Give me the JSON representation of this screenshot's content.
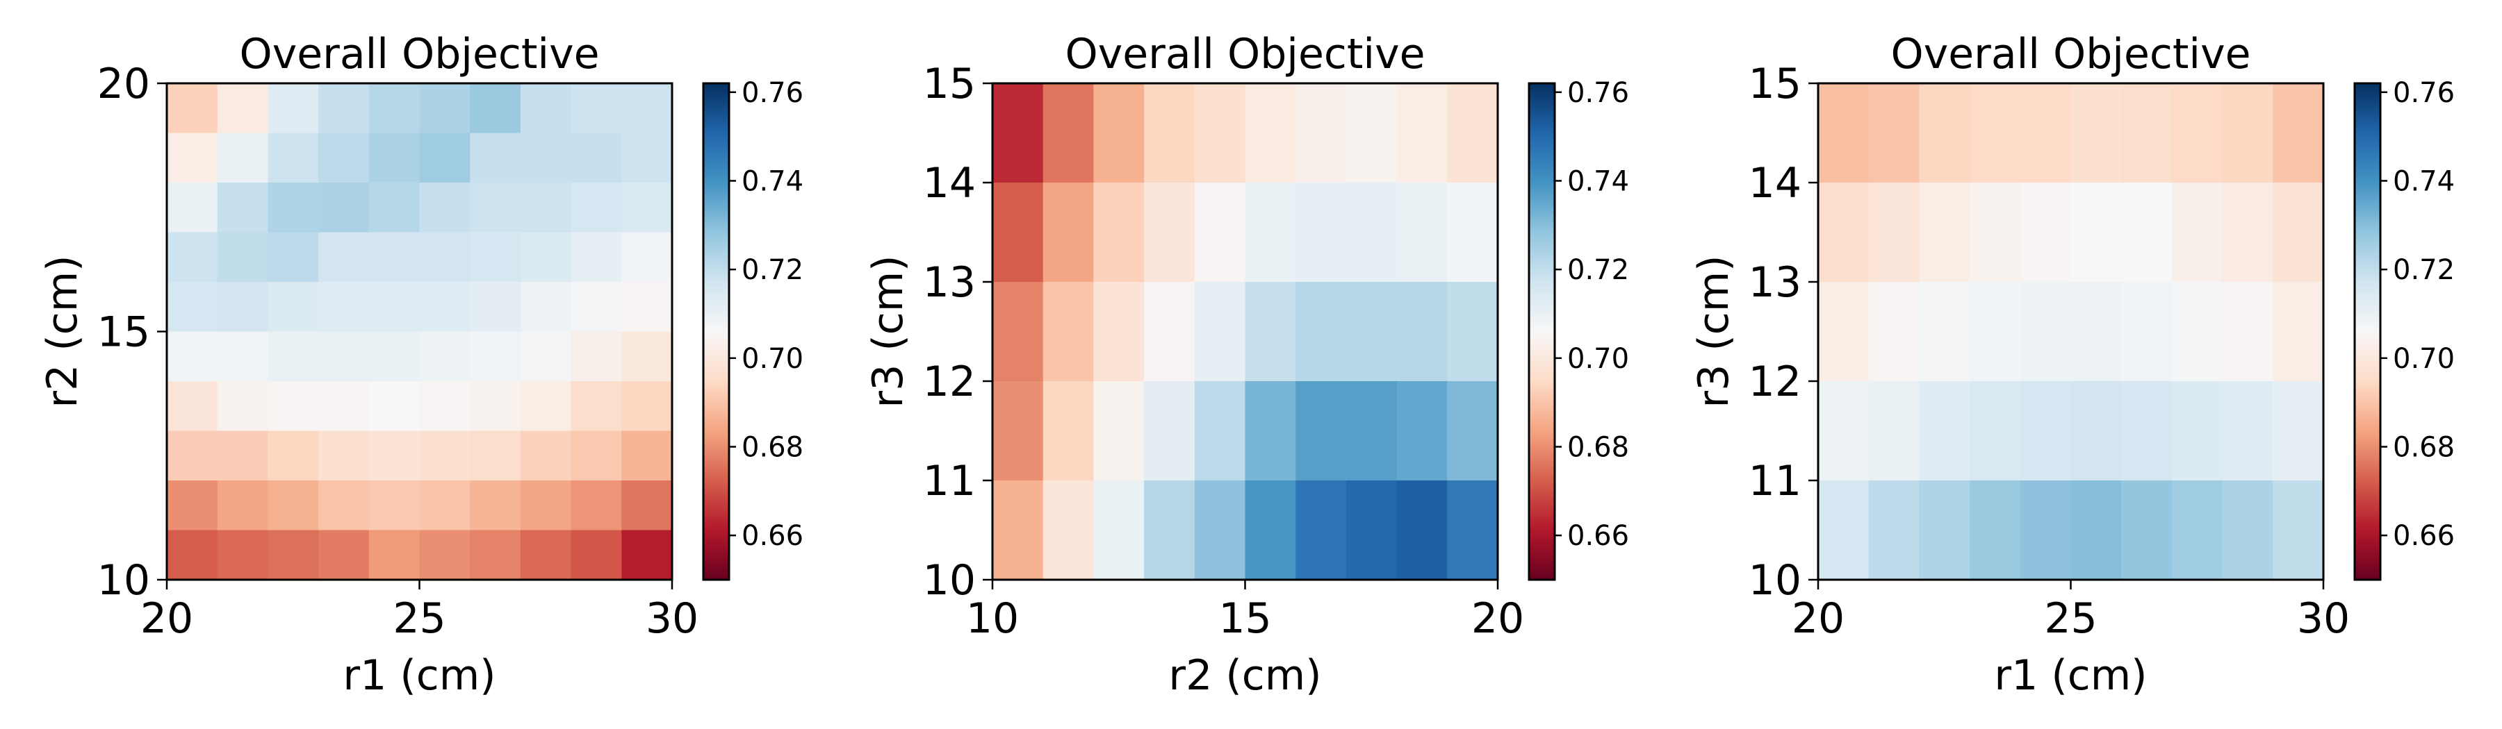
{
  "colormap": {
    "name": "RdBu",
    "stops": [
      "#67001f",
      "#b2182b",
      "#d6604d",
      "#f4a582",
      "#fddbc7",
      "#f7f7f7",
      "#d1e5f0",
      "#92c5de",
      "#4393c3",
      "#2166ac",
      "#053061"
    ]
  },
  "chart_data": [
    {
      "type": "heatmap",
      "title": "Overall Objective",
      "xlabel": "r1 (cm)",
      "ylabel": "r2 (cm)",
      "xlim": [
        20,
        30
      ],
      "ylim": [
        10,
        20
      ],
      "xticks": [
        20,
        25,
        30
      ],
      "yticks": [
        10,
        15,
        20
      ],
      "vmin": 0.65,
      "vmax": 0.762,
      "colorbar_ticks": [
        "0.66",
        "0.68",
        "0.70",
        "0.72",
        "0.74",
        "0.76"
      ],
      "rows_top_to_bottom": [
        [
          0.693,
          0.701,
          0.713,
          0.719,
          0.722,
          0.724,
          0.727,
          0.719,
          0.718,
          0.718
        ],
        [
          0.702,
          0.71,
          0.718,
          0.721,
          0.724,
          0.726,
          0.719,
          0.719,
          0.719,
          0.718
        ],
        [
          0.71,
          0.719,
          0.723,
          0.724,
          0.722,
          0.719,
          0.718,
          0.718,
          0.716,
          0.715
        ],
        [
          0.718,
          0.72,
          0.721,
          0.717,
          0.717,
          0.717,
          0.716,
          0.714,
          0.711,
          0.708
        ],
        [
          0.716,
          0.717,
          0.714,
          0.713,
          0.713,
          0.713,
          0.712,
          0.709,
          0.707,
          0.705
        ],
        [
          0.708,
          0.708,
          0.71,
          0.71,
          0.71,
          0.709,
          0.708,
          0.707,
          0.703,
          0.7
        ],
        [
          0.699,
          0.704,
          0.705,
          0.705,
          0.706,
          0.705,
          0.704,
          0.702,
          0.696,
          0.694
        ],
        [
          0.692,
          0.692,
          0.694,
          0.697,
          0.698,
          0.697,
          0.696,
          0.693,
          0.691,
          0.687
        ],
        [
          0.68,
          0.684,
          0.686,
          0.69,
          0.691,
          0.69,
          0.687,
          0.684,
          0.681,
          0.676
        ],
        [
          0.672,
          0.674,
          0.675,
          0.677,
          0.682,
          0.68,
          0.678,
          0.674,
          0.671,
          0.662
        ]
      ]
    },
    {
      "type": "heatmap",
      "title": "Overall Objective",
      "xlabel": "r2 (cm)",
      "ylabel": "r3 (cm)",
      "xlim": [
        10,
        20
      ],
      "ylim": [
        10,
        15
      ],
      "xticks": [
        10,
        15,
        20
      ],
      "yticks": [
        10,
        11,
        12,
        13,
        14,
        15
      ],
      "vmin": 0.65,
      "vmax": 0.762,
      "colorbar_ticks": [
        "0.66",
        "0.68",
        "0.70",
        "0.72",
        "0.74",
        "0.76"
      ],
      "rows_top_to_bottom": [
        [
          0.664,
          0.676,
          0.686,
          0.694,
          0.697,
          0.701,
          0.703,
          0.704,
          0.702,
          0.698
        ],
        [
          0.672,
          0.684,
          0.693,
          0.699,
          0.705,
          0.71,
          0.711,
          0.711,
          0.71,
          0.708
        ],
        [
          0.678,
          0.69,
          0.698,
          0.705,
          0.711,
          0.719,
          0.722,
          0.722,
          0.722,
          0.72
        ],
        [
          0.68,
          0.694,
          0.704,
          0.712,
          0.721,
          0.732,
          0.737,
          0.737,
          0.735,
          0.731
        ],
        [
          0.686,
          0.699,
          0.71,
          0.722,
          0.729,
          0.739,
          0.747,
          0.75,
          0.752,
          0.746
        ]
      ]
    },
    {
      "type": "heatmap",
      "title": "Overall Objective",
      "xlabel": "r1 (cm)",
      "ylabel": "r3 (cm)",
      "xlim": [
        20,
        30
      ],
      "ylim": [
        10,
        15
      ],
      "xticks": [
        20,
        25,
        30
      ],
      "yticks": [
        10,
        11,
        12,
        13,
        14,
        15
      ],
      "vmin": 0.65,
      "vmax": 0.762,
      "colorbar_ticks": [
        "0.66",
        "0.68",
        "0.70",
        "0.72",
        "0.74",
        "0.76"
      ],
      "rows_top_to_bottom": [
        [
          0.689,
          0.69,
          0.694,
          0.695,
          0.695,
          0.697,
          0.696,
          0.695,
          0.694,
          0.69
        ],
        [
          0.696,
          0.699,
          0.702,
          0.704,
          0.705,
          0.706,
          0.706,
          0.703,
          0.701,
          0.698
        ],
        [
          0.702,
          0.705,
          0.707,
          0.708,
          0.709,
          0.709,
          0.708,
          0.707,
          0.705,
          0.702
        ],
        [
          0.709,
          0.71,
          0.713,
          0.715,
          0.716,
          0.717,
          0.716,
          0.714,
          0.713,
          0.711
        ],
        [
          0.716,
          0.721,
          0.723,
          0.727,
          0.729,
          0.73,
          0.728,
          0.726,
          0.724,
          0.72
        ]
      ]
    }
  ]
}
